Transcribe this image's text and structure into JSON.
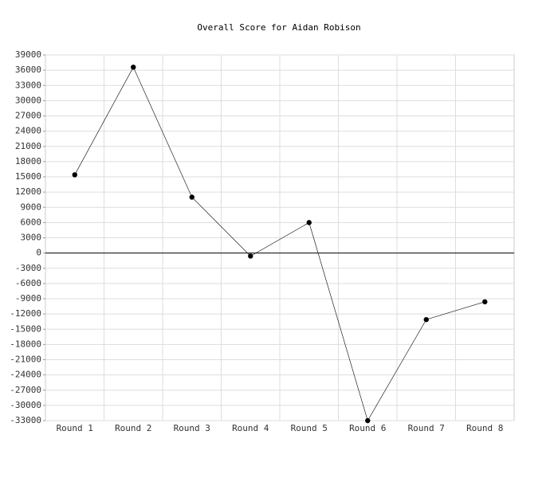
{
  "chart_data": {
    "type": "line",
    "title": "Overall Score for Aidan Robison",
    "categories": [
      "Round 1",
      "Round 2",
      "Round 3",
      "Round 4",
      "Round 5",
      "Round 6",
      "Round 7",
      "Round 8"
    ],
    "series": [
      {
        "name": "Overall Score",
        "color": "#000000",
        "values": [
          15400,
          36600,
          11000,
          -600,
          6000,
          -33000,
          -13100,
          -9600
        ]
      }
    ],
    "ylim": [
      -33000,
      39000
    ],
    "yticks": [
      -33000,
      -30000,
      -27000,
      -24000,
      -21000,
      -18000,
      -15000,
      -12000,
      -9000,
      -6000,
      -3000,
      0,
      3000,
      6000,
      9000,
      12000,
      15000,
      18000,
      21000,
      24000,
      27000,
      30000,
      33000,
      36000,
      39000
    ],
    "grid": true
  }
}
